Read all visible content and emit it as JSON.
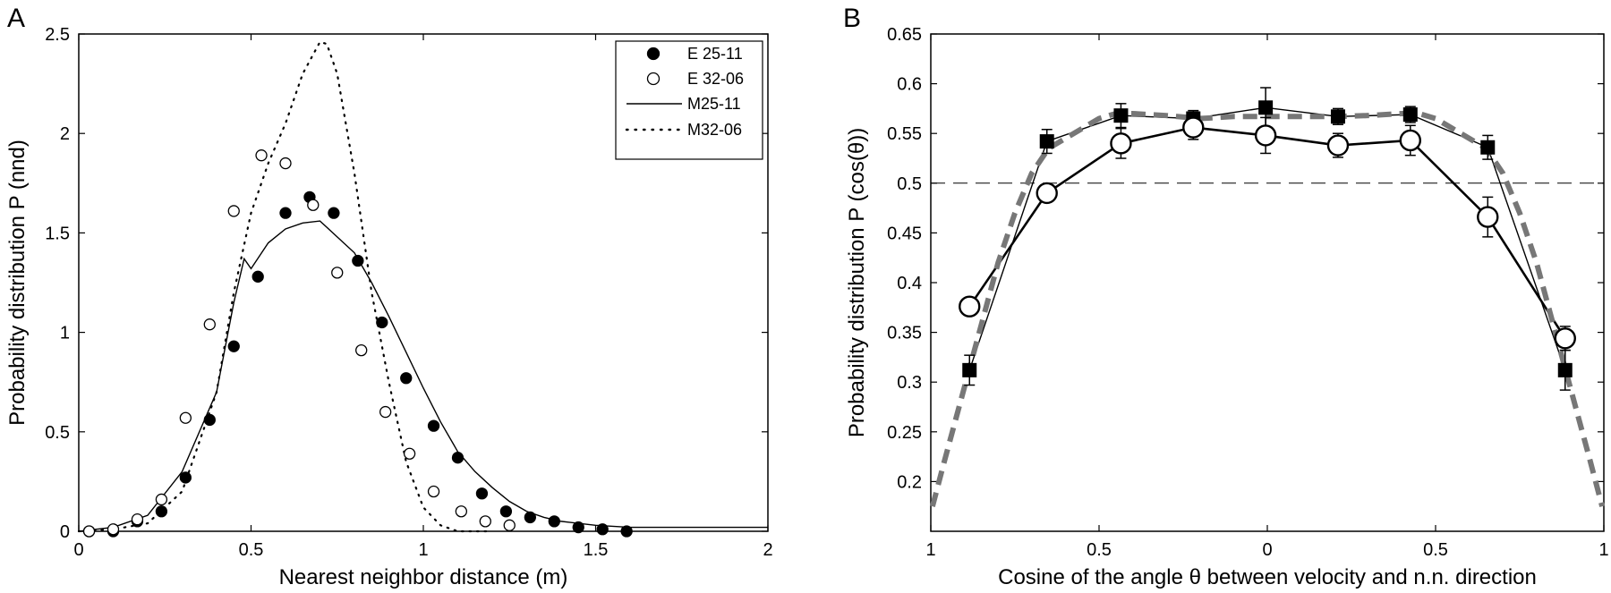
{
  "chart_data": [
    {
      "type": "scatter",
      "panel_label": "A",
      "xlabel": "Nearest neighbor distance (m)",
      "ylabel": "Probability distribution P (nnd)",
      "xlim": [
        0,
        2
      ],
      "ylim": [
        0,
        2.5
      ],
      "xticks": [
        0,
        0.5,
        1,
        1.5,
        2
      ],
      "xtick_labels": [
        "0",
        "0.5",
        "1",
        "1.5",
        "2"
      ],
      "yticks": [
        0,
        0.5,
        1,
        1.5,
        2,
        2.5
      ],
      "ytick_labels": [
        "0",
        "0.5",
        "1",
        "1.5",
        "2",
        "2.5"
      ],
      "grid": false,
      "legend_position": "top-right",
      "series": [
        {
          "name": "E 25-11",
          "style": "filled-circle",
          "x": [
            0.03,
            0.1,
            0.17,
            0.24,
            0.31,
            0.38,
            0.45,
            0.52,
            0.6,
            0.67,
            0.74,
            0.81,
            0.88,
            0.95,
            1.03,
            1.1,
            1.17,
            1.24,
            1.31,
            1.38,
            1.45,
            1.52,
            1.59
          ],
          "y": [
            0.0,
            0.0,
            0.05,
            0.1,
            0.27,
            0.56,
            0.93,
            1.28,
            1.6,
            1.68,
            1.6,
            1.36,
            1.05,
            0.77,
            0.53,
            0.37,
            0.19,
            0.1,
            0.07,
            0.05,
            0.02,
            0.01,
            0.0
          ]
        },
        {
          "name": "E 32-06",
          "style": "open-circle",
          "x": [
            0.03,
            0.1,
            0.17,
            0.24,
            0.31,
            0.38,
            0.45,
            0.53,
            0.6,
            0.68,
            0.75,
            0.82,
            0.89,
            0.96,
            1.03,
            1.11,
            1.18,
            1.25
          ],
          "y": [
            0.0,
            0.01,
            0.06,
            0.16,
            0.57,
            1.04,
            1.61,
            1.89,
            1.85,
            1.64,
            1.3,
            0.91,
            0.6,
            0.39,
            0.2,
            0.1,
            0.05,
            0.03
          ]
        },
        {
          "name": "M25-11",
          "style": "solid-line",
          "x": [
            0.0,
            0.1,
            0.2,
            0.3,
            0.4,
            0.45,
            0.48,
            0.5,
            0.55,
            0.6,
            0.65,
            0.7,
            0.75,
            0.8,
            0.85,
            0.9,
            0.95,
            1.0,
            1.05,
            1.1,
            1.15,
            1.2,
            1.25,
            1.3,
            1.35,
            1.4,
            1.5,
            1.6,
            1.8,
            2.0
          ],
          "y": [
            0.0,
            0.02,
            0.08,
            0.3,
            0.7,
            1.15,
            1.37,
            1.32,
            1.45,
            1.52,
            1.55,
            1.56,
            1.48,
            1.4,
            1.25,
            1.08,
            0.9,
            0.72,
            0.55,
            0.4,
            0.3,
            0.22,
            0.15,
            0.1,
            0.07,
            0.05,
            0.03,
            0.02,
            0.02,
            0.02
          ]
        },
        {
          "name": "M32-06",
          "style": "dotted-line",
          "x": [
            0.0,
            0.1,
            0.2,
            0.3,
            0.4,
            0.45,
            0.5,
            0.55,
            0.6,
            0.65,
            0.7,
            0.72,
            0.75,
            0.8,
            0.85,
            0.9,
            0.95,
            1.0,
            1.05,
            1.1,
            1.15,
            1.2
          ],
          "y": [
            0.0,
            0.01,
            0.04,
            0.2,
            0.7,
            1.2,
            1.6,
            1.85,
            2.05,
            2.3,
            2.46,
            2.45,
            2.3,
            1.8,
            1.2,
            0.75,
            0.35,
            0.12,
            0.03,
            0.0,
            0.0,
            0.0
          ]
        }
      ]
    },
    {
      "type": "line",
      "panel_label": "B",
      "xlabel": "Cosine of the angle θ between velocity and n.n. direction",
      "ylabel": "Probability distribution P (cos(θ))",
      "xlim": [
        -1,
        1
      ],
      "ylim": [
        0.15,
        0.65
      ],
      "xticks": [
        -1,
        -0.5,
        0,
        0.5,
        1
      ],
      "xtick_labels": [
        "1",
        "0.5",
        "0",
        "0.5",
        "1"
      ],
      "yticks": [
        0.2,
        0.25,
        0.3,
        0.35,
        0.4,
        0.45,
        0.5,
        0.55,
        0.6,
        0.65
      ],
      "ytick_labels": [
        "0.2",
        "0.25",
        "0.3",
        "0.35",
        "0.4",
        "0.45",
        "0.5",
        "0.55",
        "0.6",
        "0.65"
      ],
      "grid": false,
      "reference_line": {
        "y": 0.5,
        "style": "dashed"
      },
      "series": [
        {
          "style": "filled-square-thin-line",
          "x": [
            -0.885,
            -0.655,
            -0.435,
            -0.22,
            -0.005,
            0.21,
            0.425,
            0.655,
            0.885
          ],
          "y": [
            0.312,
            0.542,
            0.568,
            0.565,
            0.576,
            0.567,
            0.569,
            0.536,
            0.312
          ],
          "err": [
            0.015,
            0.012,
            0.012,
            0.008,
            0.02,
            0.008,
            0.008,
            0.012,
            0.02
          ]
        },
        {
          "style": "open-circle-thick-line",
          "x": [
            -0.885,
            -0.655,
            -0.435,
            -0.22,
            -0.005,
            0.21,
            0.425,
            0.655,
            0.885
          ],
          "y": [
            0.376,
            0.49,
            0.54,
            0.556,
            0.548,
            0.538,
            0.543,
            0.466,
            0.344
          ],
          "err": [
            0.008,
            0.008,
            0.015,
            0.012,
            0.018,
            0.012,
            0.015,
            0.02,
            0.012
          ]
        },
        {
          "style": "gray-dashed-thick",
          "x": [
            -0.995,
            -0.96,
            -0.92,
            -0.88,
            -0.84,
            -0.8,
            -0.75,
            -0.7,
            -0.65,
            -0.6,
            -0.55,
            -0.5,
            -0.45,
            -0.4,
            -0.3,
            -0.2,
            -0.1,
            0.0,
            0.1,
            0.2,
            0.3,
            0.4,
            0.45,
            0.5,
            0.55,
            0.6,
            0.65,
            0.7,
            0.75,
            0.8,
            0.84,
            0.88,
            0.92,
            0.96,
            0.995
          ],
          "y": [
            0.175,
            0.22,
            0.27,
            0.32,
            0.37,
            0.42,
            0.47,
            0.51,
            0.535,
            0.545,
            0.555,
            0.565,
            0.57,
            0.57,
            0.568,
            0.565,
            0.567,
            0.567,
            0.567,
            0.567,
            0.568,
            0.57,
            0.57,
            0.565,
            0.555,
            0.545,
            0.535,
            0.51,
            0.47,
            0.42,
            0.37,
            0.32,
            0.27,
            0.22,
            0.175
          ]
        }
      ]
    }
  ]
}
